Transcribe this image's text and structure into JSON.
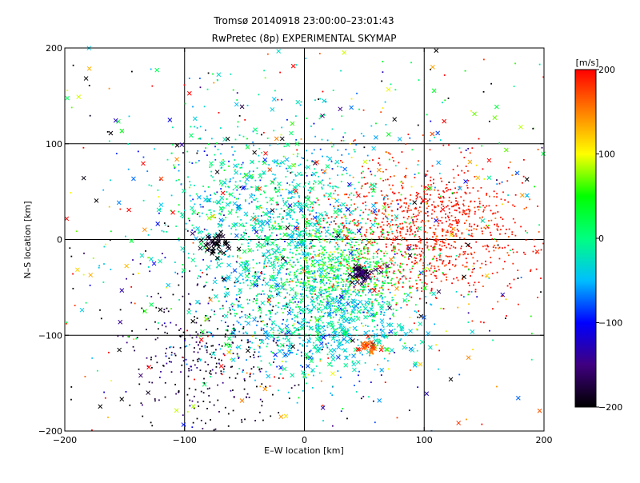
{
  "chart_data": {
    "type": "scatter",
    "title": "Tromsø 20140918 23:00:00–23:01:43",
    "subtitle": "RwPretec (8p) EXPERIMENTAL SKYMAP",
    "xlabel": "E–W location [km]",
    "ylabel": "N–S location [km]",
    "xlim": [
      -200,
      200
    ],
    "ylim": [
      -200,
      200
    ],
    "xticks": [
      -200,
      -100,
      0,
      100,
      200
    ],
    "yticks": [
      -200,
      -100,
      0,
      100,
      200
    ],
    "xtick_labels": [
      "−200",
      "−100",
      "0",
      "100",
      "200"
    ],
    "ytick_labels": [
      "−200",
      "−100",
      "0",
      "100",
      "200"
    ],
    "grid": true,
    "grid_color": "#000000",
    "marker_styles": [
      "dot",
      "x"
    ],
    "colorbar": {
      "unit_label": "[m/s]",
      "range": [
        -200,
        200
      ],
      "ticks": [
        200,
        100,
        0,
        -100,
        -200
      ],
      "tick_labels": [
        "200",
        "100",
        "0",
        "−100",
        "−200"
      ],
      "colormap": "rainbow",
      "colors": [
        "#000000",
        "#400080",
        "#0000ff",
        "#00bfff",
        "#00ff80",
        "#00ff00",
        "#ffff00",
        "#ff8000",
        "#ff0000"
      ]
    },
    "series": [
      {
        "marker": "dot",
        "clusters": [
          {
            "x": 100,
            "y": 10,
            "sx": 45,
            "sy": 35,
            "n": 1050,
            "v": 190,
            "dv": 15
          },
          {
            "x": 35,
            "y": -35,
            "sx": 30,
            "sy": 25,
            "n": 750,
            "v": 40,
            "dv": 30
          },
          {
            "x": -25,
            "y": 20,
            "sx": 45,
            "sy": 55,
            "n": 900,
            "v": -20,
            "dv": 35
          },
          {
            "x": 10,
            "y": -85,
            "sx": 40,
            "sy": 30,
            "n": 550,
            "v": -40,
            "dv": 30
          },
          {
            "x": -80,
            "y": -120,
            "sx": 35,
            "sy": 50,
            "n": 380,
            "v": -180,
            "dv": 30
          },
          {
            "x": 0,
            "y": 10,
            "sx": 150,
            "sy": 130,
            "n": 650,
            "v": 0,
            "dv": 150
          }
        ]
      },
      {
        "marker": "x",
        "clusters": [
          {
            "x": -30,
            "y": 10,
            "sx": 40,
            "sy": 55,
            "n": 260,
            "v": -20,
            "dv": 30
          },
          {
            "x": 20,
            "y": -95,
            "sx": 35,
            "sy": 25,
            "n": 180,
            "v": -30,
            "dv": 25
          },
          {
            "x": 0,
            "y": 0,
            "sx": 130,
            "sy": 120,
            "n": 260,
            "v": 0,
            "dv": 160
          },
          {
            "x": 48,
            "y": -35,
            "sx": 5,
            "sy": 4,
            "n": 50,
            "v": -170,
            "dv": 15
          },
          {
            "x": -75,
            "y": -5,
            "sx": 6,
            "sy": 6,
            "n": 40,
            "v": -195,
            "dv": 10
          },
          {
            "x": 55,
            "y": -112,
            "sx": 5,
            "sy": 4,
            "n": 25,
            "v": 170,
            "dv": 20
          }
        ]
      }
    ]
  }
}
